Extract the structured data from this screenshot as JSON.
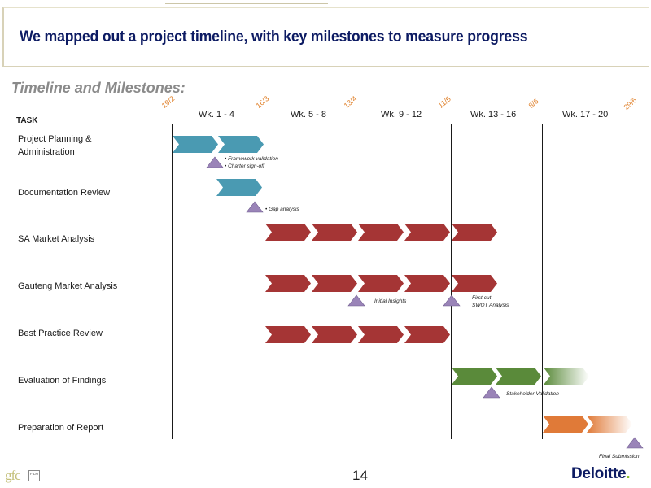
{
  "title": "We mapped out a project timeline, with key milestones to measure progress",
  "subtitle": "Timeline and Milestones:",
  "task_header": "TASK",
  "dates": [
    "19/2",
    "16/3",
    "13/4",
    "11/5",
    "8/6",
    "29/6"
  ],
  "weeks": [
    "Wk. 1 - 4",
    "Wk. 5 - 8",
    "Wk. 9 - 12",
    "Wk. 13 - 16",
    "Wk. 17 - 20"
  ],
  "tasks": [
    {
      "label_lines": [
        "Project Planning &",
        "Administration"
      ]
    },
    {
      "label_lines": [
        "Documentation Review"
      ]
    },
    {
      "label_lines": [
        "SA Market Analysis"
      ]
    },
    {
      "label_lines": [
        "Gauteng Market Analysis"
      ]
    },
    {
      "label_lines": [
        "Best Practice Review"
      ]
    },
    {
      "label_lines": [
        "Evaluation of Findings"
      ]
    },
    {
      "label_lines": [
        "Preparation of Report"
      ]
    }
  ],
  "colors": {
    "planning": "#4a9ab2",
    "analysis": "#a53535",
    "evaluation": "#5a8a3a",
    "report": "#e07a38",
    "milestone": "#9a84b8",
    "date": "#e0802a",
    "title": "#0d1b63"
  },
  "notes": {
    "n1": [
      "• Framework validation",
      "• Charter sign-off"
    ],
    "n2": [
      "• Gap analysis"
    ],
    "n3": [
      "Initial Insights"
    ],
    "n4": [
      "First-cut",
      "SWOT Analysis"
    ],
    "n5": [
      "Stakeholder Validation"
    ],
    "n6": [
      "Final Submission"
    ]
  },
  "footer": {
    "page_number": "14",
    "logo_left": "gfc",
    "logo_left_box": "FILM",
    "logo_right": "Deloitte",
    "logo_right_dot": "."
  }
}
